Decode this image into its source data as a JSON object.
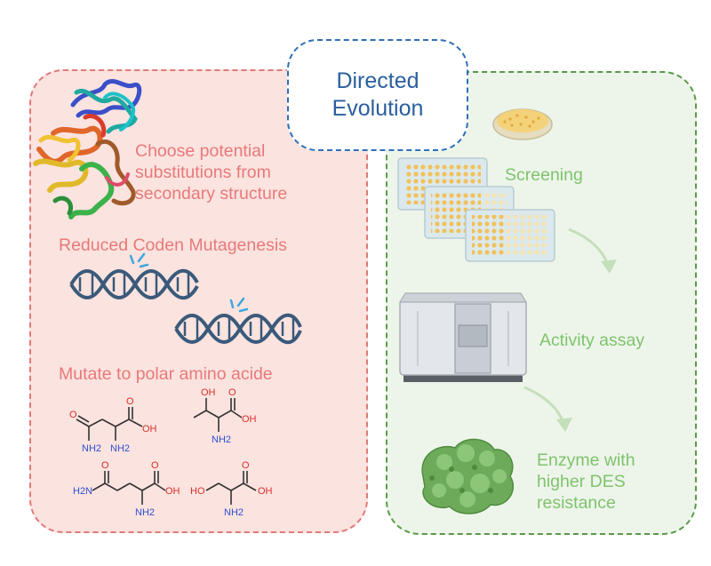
{
  "title": {
    "line1": "Directed",
    "line2": "Evolution"
  },
  "left": {
    "step1": [
      "Choose potential",
      "substitutions from",
      "secondary structure"
    ],
    "step2": "Reduced Coden Mutagenesis",
    "step3": "Mutate to polar amino acide",
    "molecules": {
      "asparagine": {
        "o1": "O",
        "o2": "O",
        "oh": "OH",
        "nh2a": "NH2",
        "nh2b": "NH2"
      },
      "threonine": {
        "oh_top": "OH",
        "o": "O",
        "oh": "OH",
        "nh2": "NH2"
      },
      "glutamine": {
        "o1": "O",
        "o2": "O",
        "oh": "OH",
        "h2n": "H2N",
        "nh2": "NH2"
      },
      "serine": {
        "ho": "HO",
        "o": "O",
        "oh": "OH",
        "nh2": "NH2"
      }
    }
  },
  "right": {
    "screening": "Screening",
    "activity": "Activity assay",
    "enzyme": [
      "Enzyme with",
      "higher DES",
      "resistance"
    ]
  },
  "colors": {
    "left_text": "#e8797a",
    "right_text": "#7fc36d",
    "title": "#2a5f9e"
  },
  "icons": [
    "protein-structure-icon",
    "dna-icon",
    "petri-dish-icon",
    "well-plate-icon",
    "plate-reader-icon",
    "enzyme-blob-icon",
    "arrow-icon"
  ]
}
